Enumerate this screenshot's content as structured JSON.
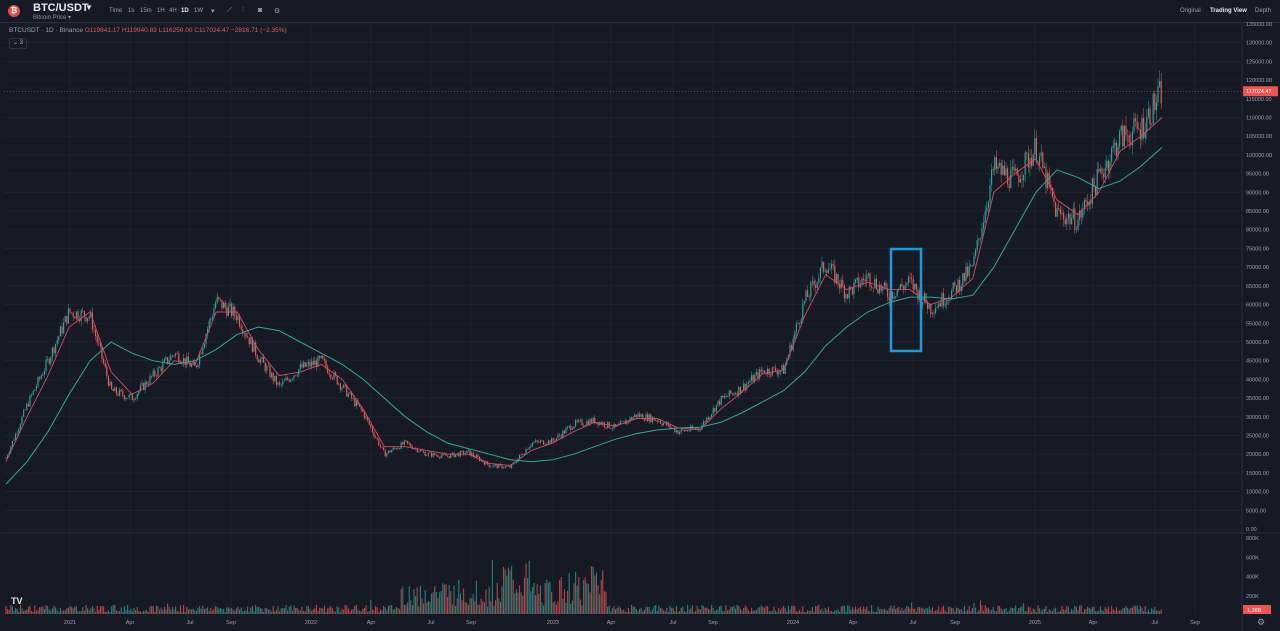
{
  "header": {
    "symbol": "BTC/USDT",
    "subtitle": "Bitcoin Price ▾",
    "timeframes": [
      "Time",
      "1s",
      "15m",
      "1H",
      "4H",
      "1D",
      "1W"
    ],
    "active_timeframe": "1D",
    "views": [
      "Original",
      "Trading View",
      "Depth"
    ],
    "active_view": "Trading View",
    "logo_color": "#e24c4c"
  },
  "legend": {
    "title": "BTCUSDT · 1D · Binance",
    "values": "O119841.17 H119940.83 L116250.00 C117024.47 −2816.71 (−2.35%)",
    "collapse_label": "⌄ 3"
  },
  "colors": {
    "background": "#161a25",
    "grid": "#232733",
    "up": "#26a69a",
    "down": "#ef5350",
    "ma_fast": "#d44a64",
    "ma_slow": "#2ca89a",
    "highlight_box": "#1e9bd7",
    "price_label_bg": "#ef5350"
  },
  "chart_data": {
    "type": "line",
    "title": "BTCUSDT · 1D · Binance",
    "xlabel": "",
    "ylabel": "",
    "x_tick_labels": [
      "2021",
      "Apr",
      "Jul",
      "Sep",
      "2022",
      "Apr",
      "Jul",
      "Sep",
      "2023",
      "Apr",
      "Jul",
      "Sep",
      "2024",
      "Apr",
      "Jul",
      "Sep",
      "2025",
      "Apr",
      "Jul",
      "Sep"
    ],
    "y_tick_labels": [
      "0.00",
      "5000.00",
      "10000.00",
      "15000.00",
      "20000.00",
      "25000.00",
      "30000.00",
      "35000.00",
      "40000.00",
      "45000.00",
      "50000.00",
      "55000.00",
      "60000.00",
      "65000.00",
      "70000.00",
      "75000.00",
      "80000.00",
      "85000.00",
      "90000.00",
      "95000.00",
      "100000.00",
      "105000.00",
      "110000.00",
      "115000.00",
      "120000.00",
      "125000.00",
      "130000.00",
      "135000.00"
    ],
    "ylim": [
      0,
      135000
    ],
    "current_price_label": "117024.47",
    "grid": true,
    "x": [
      "2020-12",
      "2021-01",
      "2021-02",
      "2021-03",
      "2021-04",
      "2021-05",
      "2021-06",
      "2021-07",
      "2021-08",
      "2021-09",
      "2021-10",
      "2021-11",
      "2021-12",
      "2022-01",
      "2022-02",
      "2022-03",
      "2022-04",
      "2022-05",
      "2022-06",
      "2022-07",
      "2022-08",
      "2022-09",
      "2022-10",
      "2022-11",
      "2022-12",
      "2023-01",
      "2023-02",
      "2023-03",
      "2023-04",
      "2023-05",
      "2023-06",
      "2023-07",
      "2023-08",
      "2023-09",
      "2023-10",
      "2023-11",
      "2023-12",
      "2024-01",
      "2024-02",
      "2024-03",
      "2024-04",
      "2024-05",
      "2024-06",
      "2024-07",
      "2024-08",
      "2024-09",
      "2024-10",
      "2024-11",
      "2024-12",
      "2025-01",
      "2025-02",
      "2025-03",
      "2025-04",
      "2025-05",
      "2025-06",
      "2025-07"
    ],
    "series": [
      {
        "kind": "price",
        "values": [
          19000,
          33000,
          45000,
          58000,
          57000,
          37000,
          35000,
          41000,
          47000,
          43000,
          61000,
          57000,
          46000,
          38000,
          43000,
          45000,
          38000,
          31000,
          20000,
          23000,
          20000,
          19500,
          20500,
          17000,
          16500,
          23000,
          23500,
          28000,
          29000,
          27000,
          30500,
          29200,
          26000,
          27000,
          34500,
          37700,
          42300,
          42500,
          61000,
          71000,
          63000,
          67500,
          62700,
          66000,
          59000,
          63300,
          70000,
          96500,
          93500,
          102000,
          84300,
          82500,
          94200,
          104600,
          107100,
          117024
        ]
      },
      {
        "kind": "ma_fast",
        "values": [
          18000,
          30000,
          41000,
          54000,
          58000,
          42000,
          36000,
          39000,
          45000,
          44000,
          58000,
          58000,
          48000,
          41000,
          42000,
          44000,
          40000,
          32000,
          22000,
          22000,
          21000,
          20000,
          20000,
          17500,
          17000,
          21000,
          23000,
          26000,
          28500,
          27500,
          29500,
          29500,
          27000,
          26500,
          32000,
          36500,
          41500,
          42500,
          57000,
          68000,
          64000,
          66000,
          64000,
          64000,
          60000,
          62000,
          67000,
          90000,
          95000,
          99000,
          88000,
          84000,
          90000,
          101000,
          105000,
          110000
        ]
      },
      {
        "kind": "ma_slow",
        "values": [
          12000,
          18000,
          26000,
          36000,
          45000,
          50000,
          47000,
          45000,
          44000,
          45000,
          48000,
          52000,
          54000,
          53000,
          50000,
          47000,
          44000,
          40000,
          35000,
          30000,
          26000,
          23000,
          21500,
          20000,
          18500,
          18000,
          18500,
          20000,
          22000,
          24000,
          25500,
          26500,
          27000,
          27200,
          28500,
          31000,
          34000,
          37000,
          42000,
          49000,
          54000,
          58000,
          60500,
          62000,
          62000,
          61500,
          62500,
          70000,
          80000,
          90000,
          96000,
          94000,
          91000,
          93000,
          97000,
          102000
        ]
      }
    ],
    "volume_axis_labels": [
      "800K",
      "600K",
      "400K",
      "200K"
    ],
    "volume_current_label": "1.28B"
  }
}
